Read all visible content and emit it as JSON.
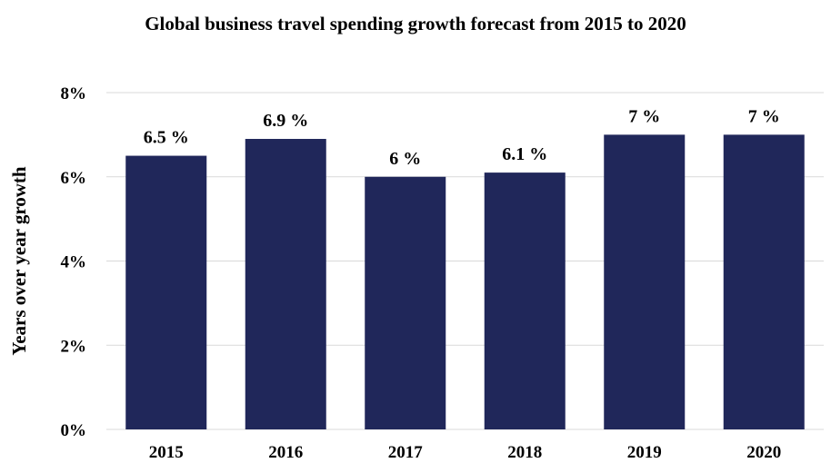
{
  "chart_data": {
    "type": "bar",
    "title": "Global business travel spending growth forecast from 2015 to 2020",
    "ylabel": "Years over year growth",
    "xlabel": "",
    "categories": [
      "2015",
      "2016",
      "2017",
      "2018",
      "2019",
      "2020"
    ],
    "values": [
      6.5,
      6.9,
      6,
      6.1,
      7,
      7
    ],
    "data_labels": [
      "6.5 %",
      "6.9 %",
      "6 %",
      "6.1 %",
      "7 %",
      "7 %"
    ],
    "ylim": [
      0,
      8
    ],
    "yticks": [
      0,
      2,
      4,
      6,
      8
    ],
    "ytick_labels": [
      "0%",
      "2%",
      "4%",
      "6%",
      "8%"
    ],
    "grid": true,
    "legend": "none",
    "colors": {
      "bar": "#20275a",
      "grid": "#d9d9d9",
      "text": "#000000"
    }
  }
}
